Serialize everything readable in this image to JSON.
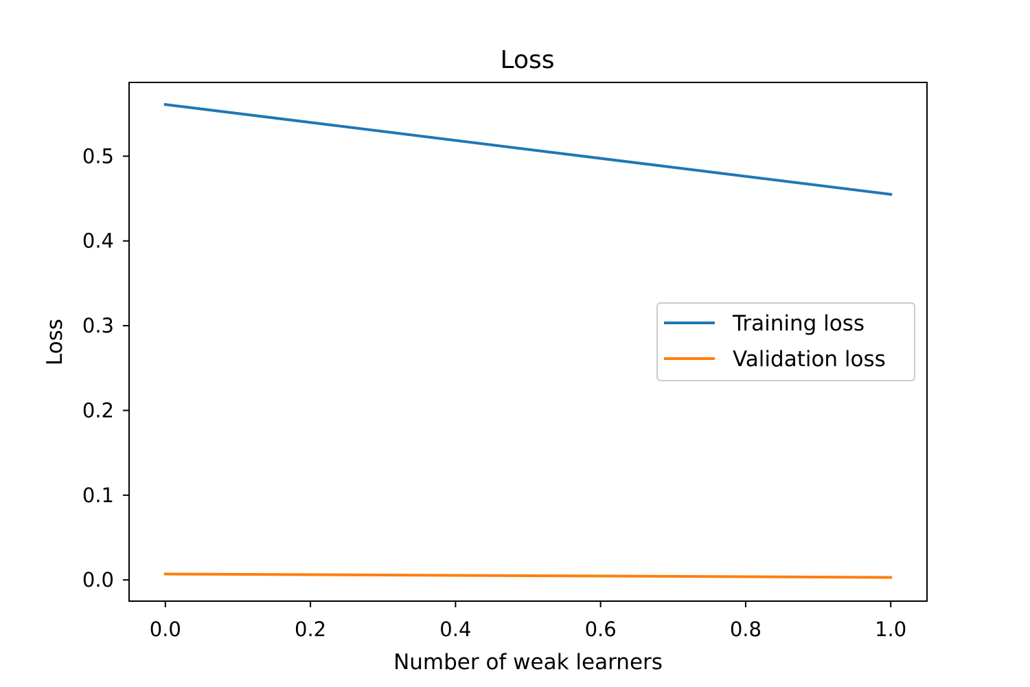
{
  "chart_data": {
    "type": "line",
    "title": "Loss",
    "xlabel": "Number of weak learners",
    "ylabel": "Loss",
    "x_ticks": [
      "0.0",
      "0.2",
      "0.4",
      "0.6",
      "0.8",
      "1.0"
    ],
    "y_ticks": [
      "0.0",
      "0.1",
      "0.2",
      "0.3",
      "0.4",
      "0.5"
    ],
    "xlim": [
      -0.05,
      1.05
    ],
    "ylim": [
      -0.025,
      0.587
    ],
    "grid": false,
    "legend_position": "center-right",
    "series": [
      {
        "name": "Training loss",
        "color": "#1f77b4",
        "x": [
          0.0,
          1.0
        ],
        "y": [
          0.561,
          0.455
        ]
      },
      {
        "name": "Validation loss",
        "color": "#ff7f0e",
        "x": [
          0.0,
          1.0
        ],
        "y": [
          0.007,
          0.003
        ]
      }
    ]
  }
}
